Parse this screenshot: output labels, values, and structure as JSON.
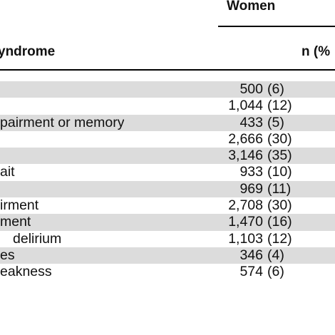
{
  "table": {
    "group_header": "Women",
    "columns": {
      "syndrome": "yndrome",
      "n": "n (%"
    },
    "rows": [
      {
        "label": "",
        "count": "500",
        "pct": "(6)",
        "shaded": true
      },
      {
        "label": "",
        "count": "1,044",
        "pct": "(12)",
        "shaded": false
      },
      {
        "label": "pairment or memory",
        "count": "433",
        "pct": "(5)",
        "shaded": true
      },
      {
        "label": "",
        "count": "2,666",
        "pct": "(30)",
        "shaded": false
      },
      {
        "label": "",
        "count": "3,146",
        "pct": "(35)",
        "shaded": true
      },
      {
        "label": "ait",
        "count": "933",
        "pct": "(10)",
        "shaded": false
      },
      {
        "label": "",
        "count": "969",
        "pct": "(11)",
        "shaded": true
      },
      {
        "label": "irment",
        "count": "2,708",
        "pct": "(30)",
        "shaded": false
      },
      {
        "label": "ment",
        "count": "1,470",
        "pct": "(16)",
        "shaded": true
      },
      {
        "label": "delirium",
        "count": "1,103",
        "pct": "(12)",
        "shaded": false
      },
      {
        "label": "es",
        "count": "346",
        "pct": "(4)",
        "shaded": true
      },
      {
        "label": "eakness",
        "count": "574",
        "pct": "(6)",
        "shaded": false
      }
    ]
  }
}
